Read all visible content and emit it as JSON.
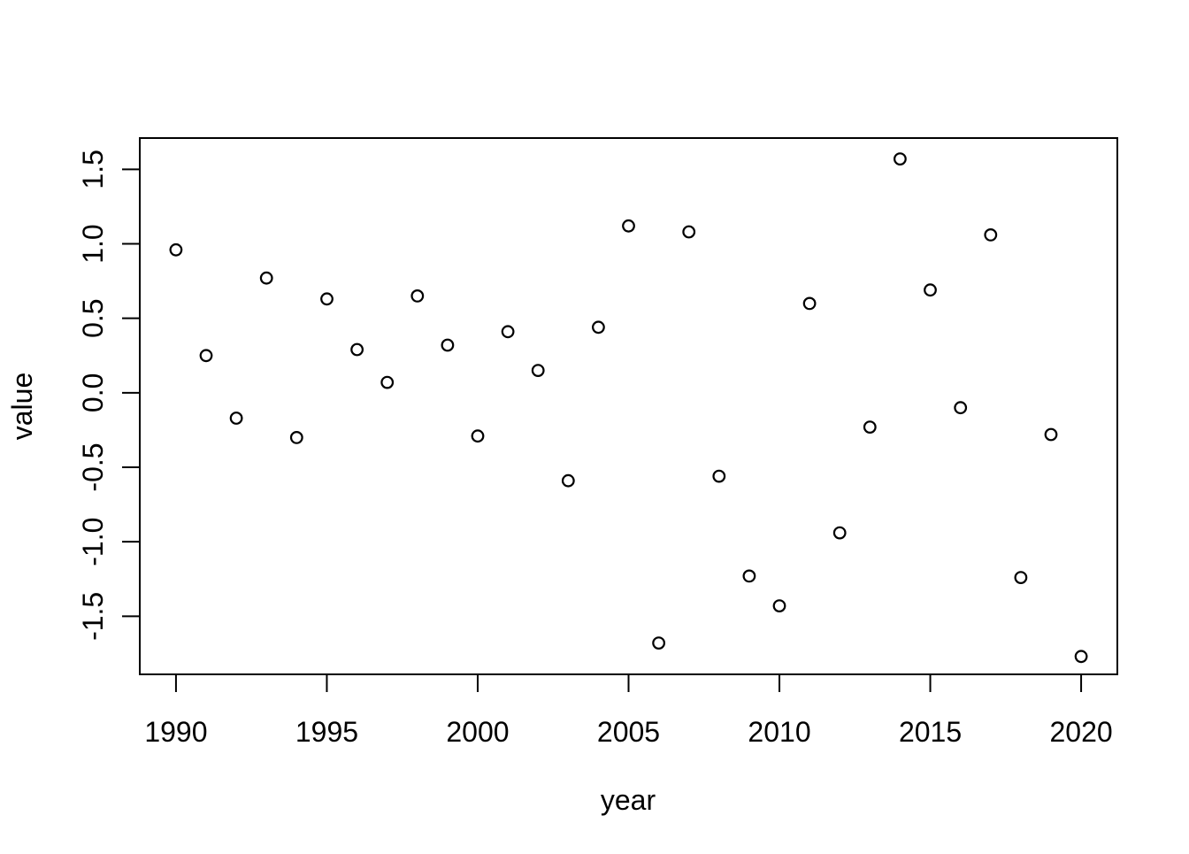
{
  "figure": {
    "background": "#ffffff",
    "foreground": "#000000"
  },
  "chart_data": {
    "type": "scatter",
    "xlabel": "year",
    "ylabel": "value",
    "marker": "open-circle",
    "grid": false,
    "legend": false,
    "x": [
      1990,
      1991,
      1992,
      1993,
      1994,
      1995,
      1996,
      1997,
      1998,
      1999,
      2000,
      2001,
      2002,
      2003,
      2004,
      2005,
      2006,
      2007,
      2008,
      2009,
      2010,
      2011,
      2012,
      2013,
      2014,
      2015,
      2016,
      2017,
      2018,
      2019,
      2020
    ],
    "y": [
      0.96,
      0.25,
      -0.17,
      0.77,
      -0.3,
      0.63,
      0.29,
      0.07,
      0.65,
      0.32,
      -0.29,
      0.41,
      0.15,
      -0.59,
      0.44,
      1.12,
      -1.68,
      1.08,
      -0.56,
      -1.23,
      -1.43,
      0.6,
      -0.94,
      -0.23,
      1.57,
      0.69,
      -0.1,
      1.06,
      -1.24,
      -0.28,
      -1.77
    ],
    "x_tick_labels": [
      "1990",
      "1995",
      "2000",
      "2005",
      "2010",
      "2015",
      "2020"
    ],
    "y_tick_labels": [
      "-1.5",
      "-1.0",
      "-0.5",
      "0.0",
      "0.5",
      "1.0",
      "1.5"
    ],
    "xlim": [
      1988.8,
      2021.2
    ],
    "ylim": [
      -1.89,
      1.71
    ]
  }
}
